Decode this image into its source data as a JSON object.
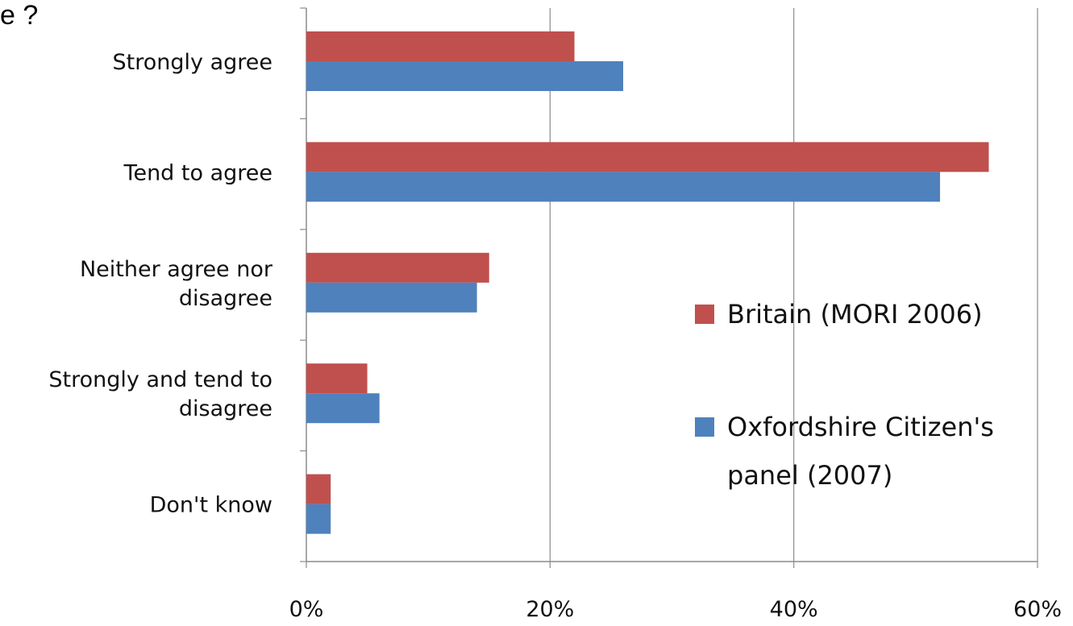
{
  "header_fragment": "e ?",
  "chart_data": {
    "type": "bar",
    "orientation": "horizontal",
    "categories": [
      [
        "Strongly agree"
      ],
      [
        "Tend to agree"
      ],
      [
        "Neither agree nor",
        "disagree"
      ],
      [
        "Strongly and tend to",
        "disagree"
      ],
      [
        "Don't know"
      ]
    ],
    "series": [
      {
        "name": "Britain (MORI 2006)",
        "color": "#C0504D",
        "values": [
          22,
          56,
          15,
          5,
          2
        ]
      },
      {
        "name": "Oxfordshire Citizen's panel (2007)",
        "color": "#4F81BD",
        "values": [
          26,
          52,
          14,
          6,
          2
        ]
      }
    ],
    "xlim": [
      0,
      60
    ],
    "xticks": [
      "0%",
      "20%",
      "40%",
      "60%"
    ],
    "grid": true,
    "legend_position": "right",
    "legend_lines": [
      [
        "Britain (MORI 2006)"
      ],
      [
        "Oxfordshire Citizen's",
        "panel (2007)"
      ]
    ]
  }
}
